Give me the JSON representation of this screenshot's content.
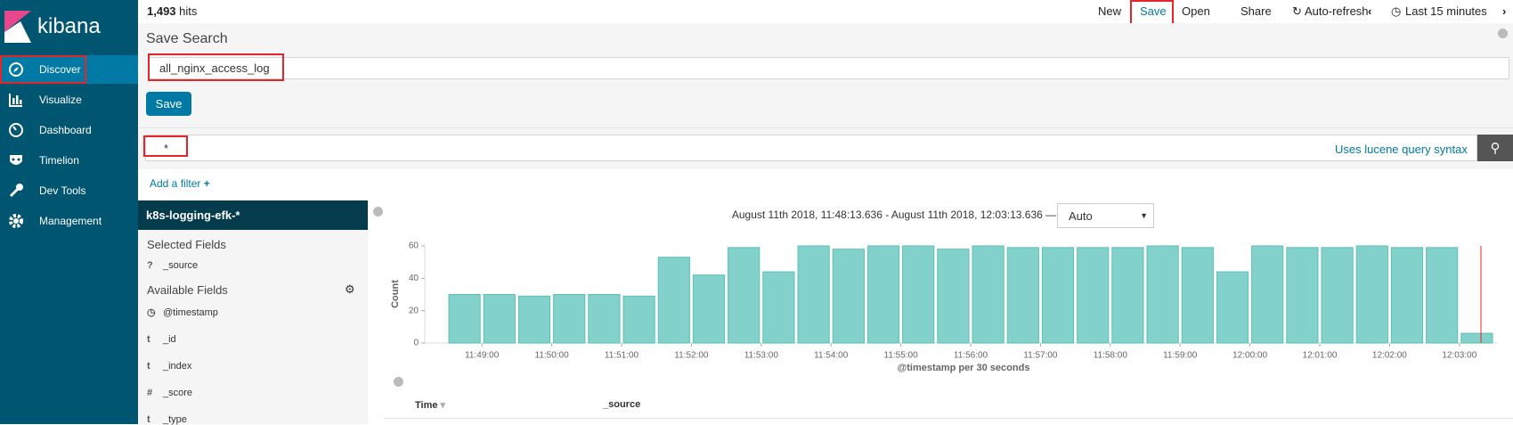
{
  "sidebar": {
    "logo": "kibana",
    "nav": [
      "Discover",
      "Visualize",
      "Dashboard",
      "Timelion",
      "Dev Tools",
      "Management"
    ]
  },
  "topbar": {
    "hits": "1,493",
    "hits_label": "hits",
    "links": [
      "New",
      "Save",
      "Open",
      "Share",
      "Auto-refresh",
      "Last 15 minutes"
    ]
  },
  "save_search": {
    "title": "Save Search",
    "name": "all_nginx_access_log",
    "button": "Save"
  },
  "query": {
    "text": "*",
    "hint": "Uses lucene query syntax"
  },
  "filter": {
    "add": "Add a filter"
  },
  "fields": {
    "index": "k8s-logging-efk-*",
    "selected_title": "Selected Fields",
    "selected": [
      {
        "type": "?",
        "name": "_source"
      }
    ],
    "available_title": "Available Fields",
    "available": [
      {
        "name": "@timestamp"
      },
      {
        "type": "t",
        "name": "_id"
      },
      {
        "type": "t",
        "name": "_index"
      },
      {
        "type": "#",
        "name": "_score"
      },
      {
        "type": "t",
        "name": "_type"
      }
    ]
  },
  "chart_data": {
    "type": "bar",
    "title": "August 11th 2018, 11:48:13.636 - August 11th 2018, 12:03:13.636 —",
    "interval": "Auto",
    "y_label": "Count",
    "x_label": "@timestamp per 30 seconds",
    "categories": [
      null,
      "11:49:00",
      null,
      "11:50:00",
      null,
      "11:51:00",
      null,
      "11:52:00",
      null,
      "11:53:00",
      null,
      "11:54:00",
      null,
      "11:55:00",
      null,
      "11:56:00",
      null,
      "11:57:00",
      null,
      "11:58:00",
      null,
      "11:59:00",
      null,
      "12:00:00",
      null,
      "12:01:00",
      null,
      "12:02:00",
      null,
      "12:03:00"
    ],
    "values": [
      30,
      30,
      29,
      30,
      30,
      29,
      53,
      42,
      59,
      44,
      60,
      58,
      60,
      60,
      58,
      60,
      59,
      59,
      59,
      59,
      60,
      59,
      44,
      60,
      59,
      59,
      60,
      59,
      59,
      6
    ],
    "color": "#82d2cb",
    "ylim": [
      0,
      60
    ],
    "yticks": [
      0,
      20,
      40,
      60
    ]
  },
  "table": {
    "columns": [
      "Time",
      "_source"
    ]
  }
}
